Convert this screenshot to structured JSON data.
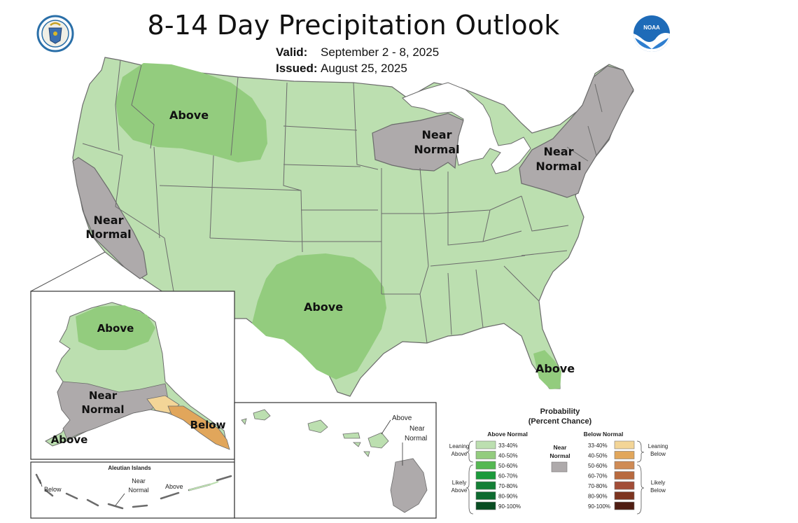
{
  "title": "8-14 Day Precipitation Outlook",
  "valid_label": "Valid:",
  "valid_value": "September 2 - 8, 2025",
  "issued_label": "Issued:",
  "issued_value": "August 25, 2025",
  "logos": {
    "left": "doc-seal-icon",
    "right": "noaa-logo-icon",
    "right_text": "NOAA"
  },
  "colors": {
    "above_leaning": "#bcdfb0",
    "above_40_50": "#93cc7e",
    "near_normal": "#aeaaab",
    "below_33_40": "#f3d597",
    "water": "#ffffff",
    "border": "#6b6b6b"
  },
  "map_labels": {
    "nw_above": "Above",
    "ca_near_1": "Near",
    "ca_near_2": "Normal",
    "gl_near_1": "Near",
    "gl_near_2": "Normal",
    "ne_near_1": "Near",
    "ne_near_2": "Normal",
    "tx_above": "Above",
    "fl_above": "Above"
  },
  "alaska_labels": {
    "above_n": "Above",
    "near_1": "Near",
    "near_2": "Normal",
    "below": "Below",
    "above_s": "Above"
  },
  "aleutian": {
    "title": "Aleutian Islands",
    "below": "Below",
    "near_1": "Near",
    "near_2": "Normal",
    "above": "Above"
  },
  "hawaii_labels": {
    "above": "Above",
    "near_1": "Near",
    "near_2": "Normal"
  },
  "legend": {
    "title_1": "Probability",
    "title_2": "(Percent Chance)",
    "above_header": "Above Normal",
    "below_header": "Below Normal",
    "near_1": "Near",
    "near_2": "Normal",
    "leaning_above_1": "Leaning",
    "leaning_above_2": "Above",
    "likely_above_1": "Likely",
    "likely_above_2": "Above",
    "leaning_below_1": "Leaning",
    "leaning_below_2": "Below",
    "likely_below_1": "Likely",
    "likely_below_2": "Below",
    "above_items": [
      {
        "label": "33-40%",
        "color": "#bcdfb0"
      },
      {
        "label": "40-50%",
        "color": "#93cc7e"
      },
      {
        "label": "50-60%",
        "color": "#55b852"
      },
      {
        "label": "60-70%",
        "color": "#1b9a3b"
      },
      {
        "label": "70-80%",
        "color": "#137f35"
      },
      {
        "label": "80-90%",
        "color": "#0d6a2f"
      },
      {
        "label": "90-100%",
        "color": "#084d22"
      }
    ],
    "below_items": [
      {
        "label": "33-40%",
        "color": "#f3d597"
      },
      {
        "label": "40-50%",
        "color": "#e1a65b"
      },
      {
        "label": "50-60%",
        "color": "#cf8b55"
      },
      {
        "label": "60-70%",
        "color": "#b86a3f"
      },
      {
        "label": "70-80%",
        "color": "#a24d37"
      },
      {
        "label": "80-90%",
        "color": "#7d3520"
      },
      {
        "label": "90-100%",
        "color": "#4f1d12"
      }
    ],
    "near_color": "#aeaaab"
  }
}
